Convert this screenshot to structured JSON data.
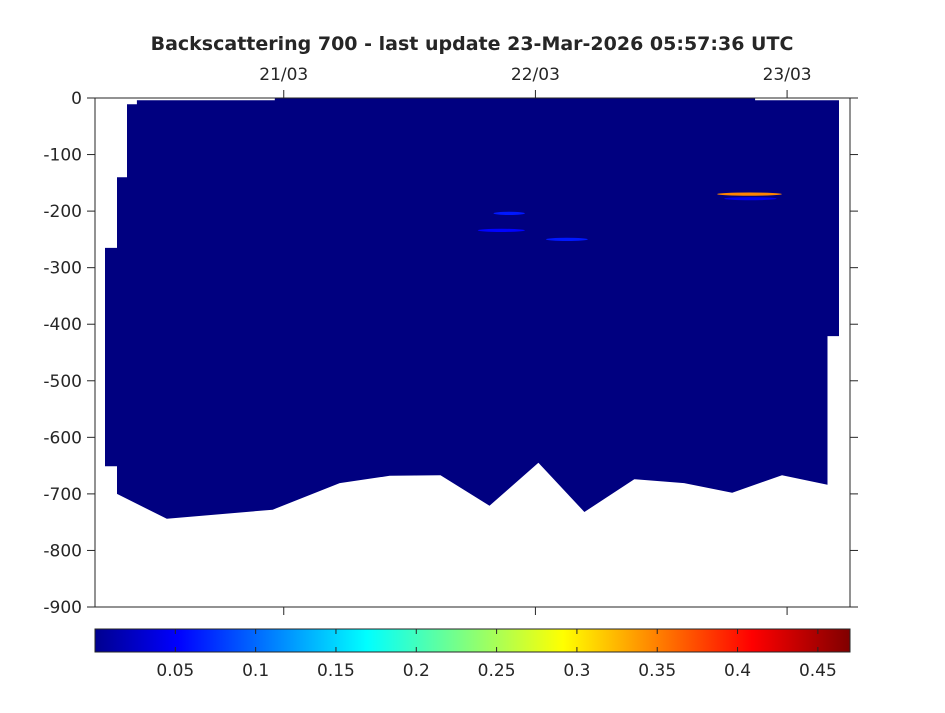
{
  "chart_data": {
    "type": "heatmap",
    "title": "Backscattering 700 - last update 23-Mar-2026 05:57:36 UTC",
    "xlabel": "",
    "ylabel": "",
    "x_axis_position": "top",
    "xlim": [
      "2026-03-20T06:00",
      "2026-03-23T06:00"
    ],
    "x_ticks": [
      {
        "time": "2026-03-21T00:00",
        "label": "21/03"
      },
      {
        "time": "2026-03-22T00:00",
        "label": "22/03"
      },
      {
        "time": "2026-03-23T00:00",
        "label": "23/03"
      }
    ],
    "ylim": [
      -900,
      0
    ],
    "y_ticks": [
      0,
      -100,
      -200,
      -300,
      -400,
      -500,
      -600,
      -700,
      -800,
      -900
    ],
    "y_tick_labels": [
      "0",
      "-100",
      "-200",
      "-300",
      "-400",
      "-500",
      "-600",
      "-700",
      "-800",
      "-900"
    ],
    "grid": false,
    "colormap": "jet",
    "background_value": 0.0,
    "colorbar": {
      "position": "bottom",
      "range": [
        0,
        0.47
      ],
      "ticks": [
        0.05,
        0.1,
        0.15,
        0.2,
        0.25,
        0.3,
        0.35,
        0.4,
        0.45
      ],
      "tick_labels": [
        "0.05",
        "0.1",
        "0.15",
        "0.2",
        "0.25",
        "0.3",
        "0.35",
        "0.4",
        "0.45"
      ]
    },
    "data_coverage_outline": [
      {
        "time": "2026-03-20T06:57",
        "depth": -265
      },
      {
        "time": "2026-03-20T08:06",
        "depth": -265
      },
      {
        "time": "2026-03-20T08:06",
        "depth": -140
      },
      {
        "time": "2026-03-20T09:03",
        "depth": -140
      },
      {
        "time": "2026-03-20T09:03",
        "depth": -11
      },
      {
        "time": "2026-03-20T10:00",
        "depth": -11
      },
      {
        "time": "2026-03-20T10:00",
        "depth": -4
      },
      {
        "time": "2026-03-20T23:09",
        "depth": -4
      },
      {
        "time": "2026-03-20T23:09",
        "depth": 0
      },
      {
        "time": "2026-03-22T20:57",
        "depth": 0
      },
      {
        "time": "2026-03-22T20:57",
        "depth": -4
      },
      {
        "time": "2026-03-23T04:57",
        "depth": -4
      },
      {
        "time": "2026-03-23T04:57",
        "depth": -421
      },
      {
        "time": "2026-03-23T03:51",
        "depth": -421
      },
      {
        "time": "2026-03-23T03:51",
        "depth": -684
      },
      {
        "time": "2026-03-22T23:31",
        "depth": -667
      },
      {
        "time": "2026-03-22T18:46",
        "depth": -698
      },
      {
        "time": "2026-03-22T14:11",
        "depth": -681
      },
      {
        "time": "2026-03-22T09:26",
        "depth": -674
      },
      {
        "time": "2026-03-22T04:40",
        "depth": -732
      },
      {
        "time": "2026-03-22T00:17",
        "depth": -645
      },
      {
        "time": "2026-03-21T19:37",
        "depth": -721
      },
      {
        "time": "2026-03-21T14:57",
        "depth": -667
      },
      {
        "time": "2026-03-21T10:06",
        "depth": -668
      },
      {
        "time": "2026-03-21T05:20",
        "depth": -681
      },
      {
        "time": "2026-03-20T22:57",
        "depth": -728
      },
      {
        "time": "2026-03-20T12:51",
        "depth": -744
      },
      {
        "time": "2026-03-20T08:06",
        "depth": -700
      },
      {
        "time": "2026-03-20T08:06",
        "depth": -651
      },
      {
        "time": "2026-03-20T06:57",
        "depth": -651
      }
    ],
    "features": [
      {
        "start": "2026-03-21T20:00",
        "end": "2026-03-21T23:00",
        "depth": -204,
        "value": 0.07
      },
      {
        "start": "2026-03-21T18:30",
        "end": "2026-03-21T23:00",
        "depth": -234,
        "value": 0.06
      },
      {
        "start": "2026-03-22T01:00",
        "end": "2026-03-22T05:00",
        "depth": -250,
        "value": 0.07
      },
      {
        "start": "2026-03-22T17:20",
        "end": "2026-03-22T23:30",
        "depth": -170,
        "value": 0.35
      },
      {
        "start": "2026-03-22T18:00",
        "end": "2026-03-22T23:00",
        "depth": -178,
        "value": 0.05
      }
    ]
  }
}
